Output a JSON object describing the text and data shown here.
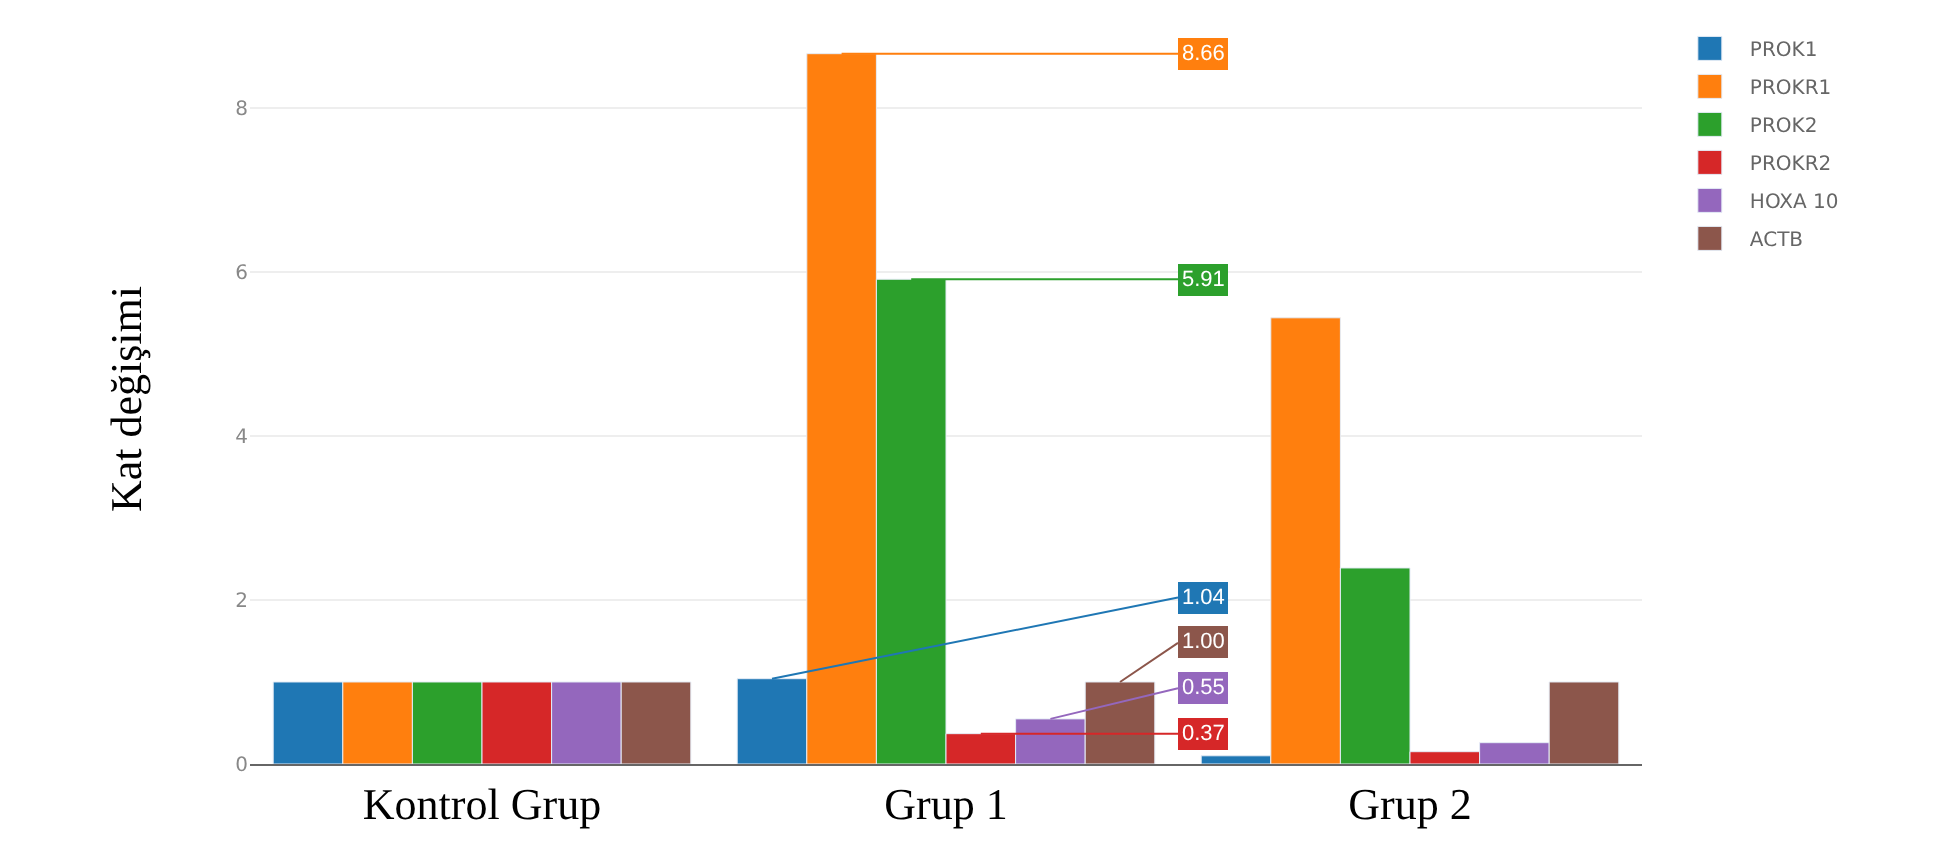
{
  "chart_data": {
    "type": "bar",
    "ylabel": "Kat değişimi",
    "categories": [
      "Kontrol Grup",
      "Grup 1",
      "Grup 2"
    ],
    "series": [
      {
        "name": "PROK1",
        "color": "#1f77b4",
        "values": [
          1.0,
          1.04,
          0.1
        ],
        "value_labels": [
          null,
          "1.04",
          null
        ]
      },
      {
        "name": "PROKR1",
        "color": "#ff7f0e",
        "values": [
          1.0,
          8.66,
          5.44
        ],
        "value_labels": [
          null,
          "8.66",
          null
        ]
      },
      {
        "name": "PROK2",
        "color": "#2ca02c",
        "values": [
          1.0,
          5.91,
          2.39
        ],
        "value_labels": [
          null,
          "5.91",
          null
        ]
      },
      {
        "name": "PROKR2",
        "color": "#d62728",
        "values": [
          1.0,
          0.37,
          0.15
        ],
        "value_labels": [
          null,
          "0.37",
          null
        ]
      },
      {
        "name": "HOXA 10",
        "color": "#9467bd",
        "values": [
          1.0,
          0.55,
          0.26
        ],
        "value_labels": [
          null,
          "0.55",
          null
        ]
      },
      {
        "name": "ACTB",
        "color": "#8c564b",
        "values": [
          1.0,
          1.0,
          1.0
        ],
        "value_labels": [
          null,
          "1.00",
          null
        ]
      }
    ],
    "ylim": [
      0,
      8.9
    ],
    "yticks": [
      0,
      2,
      4,
      6,
      8
    ],
    "grid": "y",
    "legend": "top right"
  }
}
